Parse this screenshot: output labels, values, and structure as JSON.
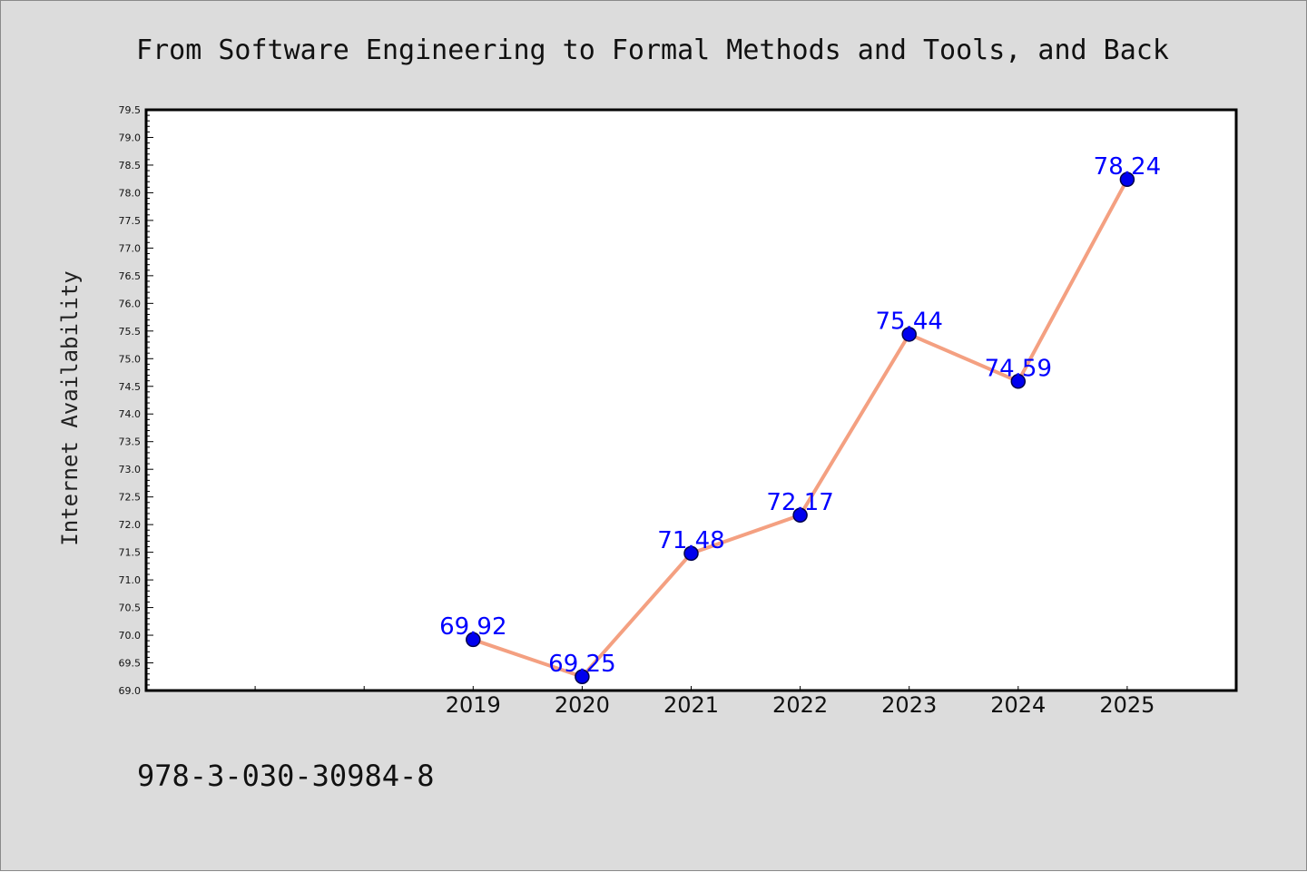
{
  "chart_data": {
    "type": "line",
    "title": "From Software Engineering to Formal Methods and Tools, and Back",
    "xlabel": "",
    "ylabel": "Internet Availability",
    "x": [
      "2019",
      "2020",
      "2021",
      "2022",
      "2023",
      "2024",
      "2025"
    ],
    "series": [
      {
        "values": [
          69.92,
          69.25,
          71.48,
          72.17,
          75.44,
          74.59,
          78.24
        ]
      }
    ],
    "data_labels": [
      "69.92",
      "69.25",
      "71.48",
      "72.17",
      "75.44",
      "74.59",
      "78.24"
    ],
    "ylim": [
      69.0,
      79.5
    ],
    "ytick_step": 0.5,
    "ytick_labels": [
      "69.0",
      "69.5",
      "70.0",
      "70.5",
      "71.0",
      "71.5",
      "72.0",
      "72.5",
      "73.0",
      "73.5",
      "74.0",
      "74.5",
      "75.0",
      "75.5",
      "76.0",
      "76.5",
      "77.0",
      "77.5",
      "78.0",
      "78.5",
      "79.0",
      "79.5"
    ],
    "x_category_slots": 10,
    "grid": false,
    "legend": "none",
    "colors": {
      "line": "#f4a081",
      "marker": "#0000ee",
      "marker_edge": "#00004a",
      "data_label": "#0000ff",
      "background": "#dcdcdc",
      "plot_background": "#ffffff"
    }
  },
  "footer": {
    "isbn": "978-3-030-30984-8"
  }
}
